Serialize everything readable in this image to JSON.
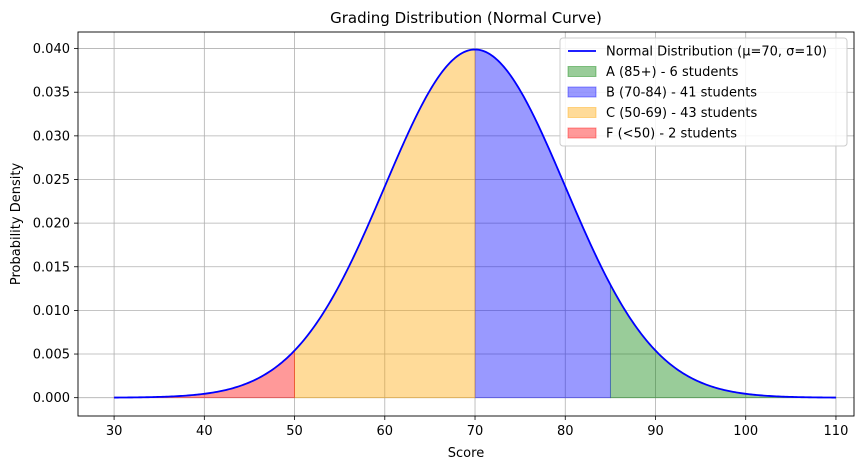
{
  "chart_data": {
    "type": "area",
    "title": "Grading Distribution (Normal Curve)",
    "xlabel": "Score",
    "ylabel": "Probability Density",
    "xlim": [
      26,
      112
    ],
    "ylim": [
      -0.0021,
      0.0419
    ],
    "x_ticks": [
      30,
      40,
      50,
      60,
      70,
      80,
      90,
      100,
      110
    ],
    "y_ticks": [
      0.0,
      0.005,
      0.01,
      0.015,
      0.02,
      0.025,
      0.03,
      0.035,
      0.04
    ],
    "x_tick_labels": [
      "30",
      "40",
      "50",
      "60",
      "70",
      "80",
      "90",
      "100",
      "110"
    ],
    "y_tick_labels": [
      "0.000",
      "0.005",
      "0.010",
      "0.015",
      "0.020",
      "0.025",
      "0.030",
      "0.035",
      "0.040"
    ],
    "grid": true,
    "legend_position": "top-right",
    "curve": {
      "name": "Normal Distribution (μ=70, σ=10)",
      "mean": 70,
      "std": 10,
      "x_range": [
        30,
        110
      ],
      "color": "#0000ff"
    },
    "regions": [
      {
        "name": "A (85+) - 6 students",
        "from": 85,
        "to": 110,
        "color": "#008000",
        "opacity": 0.4
      },
      {
        "name": "B (70-84) - 41 students",
        "from": 70,
        "to": 85,
        "color": "#0000ff",
        "opacity": 0.4
      },
      {
        "name": "C (50-69) - 43 students",
        "from": 50,
        "to": 70,
        "color": "#ffa500",
        "opacity": 0.4
      },
      {
        "name": "F (<50) - 2 students",
        "from": 30,
        "to": 50,
        "color": "#ff0000",
        "opacity": 0.4
      }
    ]
  }
}
